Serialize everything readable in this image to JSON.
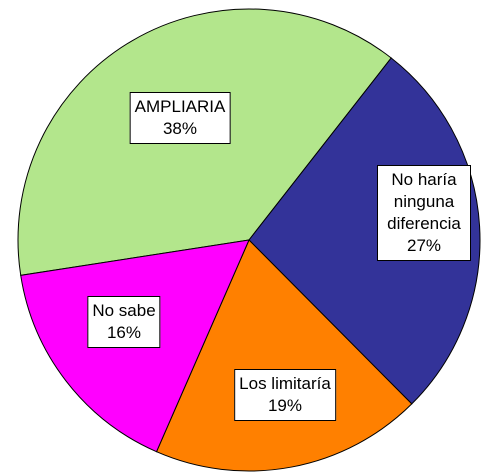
{
  "chart_data": {
    "type": "pie",
    "categories": [
      "AMPLIARIA",
      "No haría ninguna diferencia",
      "Los limitaría",
      "No sabe"
    ],
    "values": [
      38,
      27,
      19,
      16
    ],
    "value_labels": [
      "38%",
      "27%",
      "19%",
      "16%"
    ],
    "colors": [
      "#b3e68c",
      "#333399",
      "#ff8000",
      "#ff00ff"
    ]
  }
}
